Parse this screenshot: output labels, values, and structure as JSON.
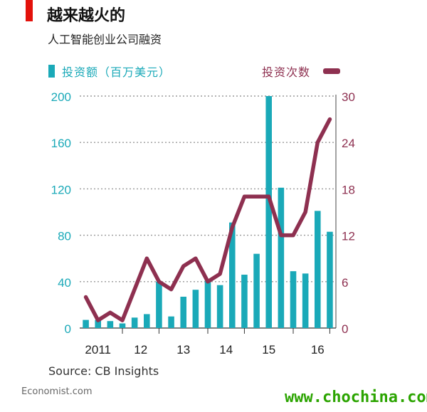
{
  "title": "越来越火的",
  "subtitle": "人工智能创业公司融资",
  "legend_bars": "投资额（百万美元）",
  "legend_line": "投资次数",
  "source": "Source: CB Insights",
  "brand": "Economist.com",
  "watermark": "www.chochina.com",
  "colors": {
    "bars": "#1aa9b8",
    "line": "#8e3050",
    "accent": "#e3120b"
  },
  "chart_data": {
    "type": "bar",
    "title": "越来越火的",
    "subtitle": "人工智能创业公司融资",
    "x_tick_labels": [
      "2011",
      "12",
      "13",
      "14",
      "15",
      "16"
    ],
    "left_axis": {
      "ticks": [
        "0",
        "40",
        "80",
        "120",
        "160",
        "200"
      ],
      "ylim": [
        0,
        200
      ]
    },
    "right_axis": {
      "ticks": [
        "0",
        "6",
        "12",
        "18",
        "24",
        "30"
      ],
      "ylim": [
        0,
        30
      ]
    },
    "series": [
      {
        "name": "投资额（百万美元）",
        "type": "bar",
        "axis": "left",
        "values": [
          7,
          7,
          6,
          4,
          9,
          12,
          40,
          10,
          27,
          33,
          41,
          37,
          91,
          46,
          64,
          200,
          121,
          49,
          47,
          101,
          83
        ]
      },
      {
        "name": "投资次数",
        "type": "line",
        "axis": "right",
        "values": [
          4,
          1,
          2,
          1,
          5,
          9,
          6,
          5,
          8,
          9,
          6,
          7,
          13,
          17,
          17,
          17,
          12,
          12,
          15,
          24,
          27
        ]
      }
    ],
    "grid": true
  }
}
